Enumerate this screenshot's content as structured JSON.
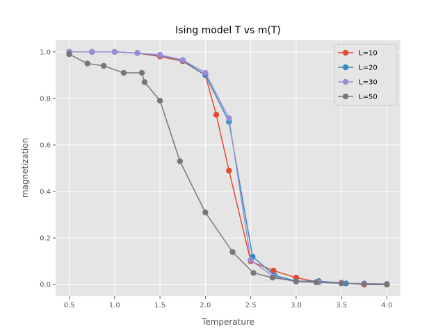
{
  "chart_data": {
    "type": "line",
    "title": "Ising model T vs m(T)",
    "xlabel": "Temperature",
    "ylabel": "magnetization",
    "xlim": [
      0.35,
      4.15
    ],
    "ylim": [
      -0.05,
      1.05
    ],
    "x_ticks": [
      0.5,
      1.0,
      1.5,
      2.0,
      2.5,
      3.0,
      3.5,
      4.0
    ],
    "x_tick_labels": [
      "0.5",
      "1.0",
      "1.5",
      "2.0",
      "2.5",
      "3.0",
      "3.5",
      "4.0"
    ],
    "y_ticks": [
      0.0,
      0.2,
      0.4,
      0.6,
      0.8,
      1.0
    ],
    "y_tick_labels": [
      "0.0",
      "0.2",
      "0.4",
      "0.6",
      "0.8",
      "1.0"
    ],
    "grid": true,
    "legend_position": "top-right",
    "series": [
      {
        "name": "L=10",
        "color": "#E24A33",
        "x": [
          0.5,
          0.75,
          1.0,
          1.25,
          1.5,
          1.75,
          2.0,
          2.12,
          2.26,
          2.5,
          2.75,
          3.0,
          3.25,
          3.5,
          3.75,
          4.0
        ],
        "y": [
          1.0,
          1.0,
          1.0,
          0.995,
          0.98,
          0.96,
          0.9,
          0.73,
          0.49,
          0.1,
          0.06,
          0.03,
          0.01,
          0.008,
          0.0,
          0.0
        ]
      },
      {
        "name": "L=20",
        "color": "#348ABD",
        "x": [
          0.5,
          0.75,
          1.0,
          1.25,
          1.5,
          1.75,
          2.0,
          2.26,
          2.52,
          2.76,
          3.0,
          3.25,
          3.55,
          3.75,
          4.0
        ],
        "y": [
          1.0,
          1.0,
          1.0,
          0.995,
          0.985,
          0.963,
          0.9,
          0.7,
          0.12,
          0.04,
          0.015,
          0.015,
          0.005,
          0.005,
          0.003
        ]
      },
      {
        "name": "L=30",
        "color": "#988ED5",
        "x": [
          0.5,
          0.75,
          1.0,
          1.25,
          1.5,
          1.75,
          2.0,
          2.26,
          2.5,
          2.75,
          3.0,
          3.25,
          3.5,
          3.75,
          4.0
        ],
        "y": [
          1.0,
          1.0,
          1.0,
          0.995,
          0.987,
          0.965,
          0.91,
          0.715,
          0.105,
          0.035,
          0.012,
          0.01,
          0.006,
          0.004,
          0.002
        ]
      },
      {
        "name": "L=50",
        "color": "#777777",
        "x": [
          0.5,
          0.7,
          0.88,
          1.1,
          1.3,
          1.33,
          1.5,
          1.72,
          2.0,
          2.3,
          2.53,
          2.74,
          3.0,
          3.22,
          3.5,
          3.75,
          4.0
        ],
        "y": [
          0.99,
          0.95,
          0.94,
          0.91,
          0.91,
          0.87,
          0.79,
          0.53,
          0.31,
          0.14,
          0.05,
          0.03,
          0.015,
          0.01,
          0.005,
          0.002,
          0.0
        ]
      }
    ]
  }
}
